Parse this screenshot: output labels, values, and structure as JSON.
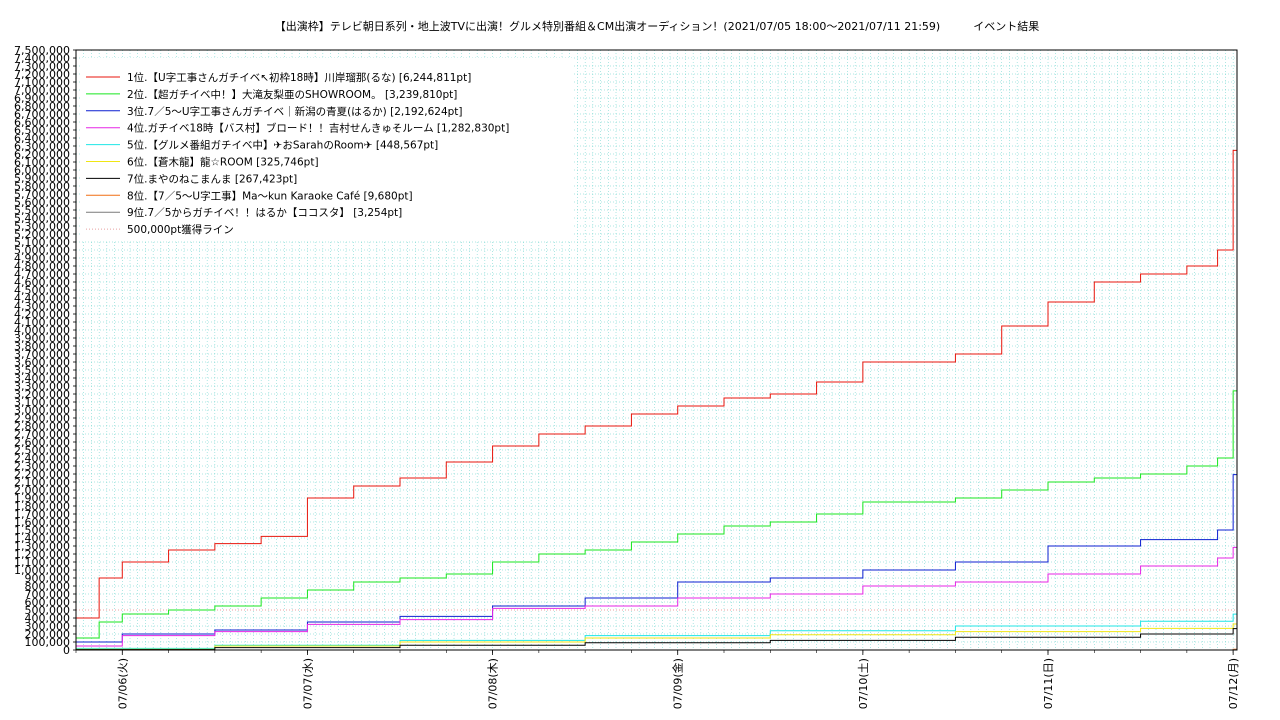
{
  "chart_data": {
    "type": "line",
    "title": "【出演枠】テレビ朝日系列・地上波TVに出演！グルメ特別番組＆CM出演オーディション！(2021/07/05 18:00〜2021/07/11 21:59)　　　イベント結果",
    "xlabel": "",
    "ylabel": "",
    "x_ticks": [
      "07/06(火)",
      "07/07(水)",
      "07/08(木)",
      "07/09(金)",
      "07/10(土)",
      "07/11(日)",
      "07/12(月)"
    ],
    "xlim": [
      "2021-07-05 18:00",
      "2021-07-12 00:30"
    ],
    "ylim": [
      0,
      7500000
    ],
    "y_tick_step": 100000,
    "grid": true,
    "legend_position": "top-left",
    "colors": {
      "s1": "#e8160c",
      "s2": "#17e61f",
      "s3": "#0b1fd0",
      "s4": "#e626e6",
      "s5": "#1fe6e6",
      "s6": "#f0e614",
      "s7": "#000000",
      "s8": "#f06e14",
      "s9": "#7a7a7a",
      "ref": "#e8a0a0",
      "grid": "#5fd0c8"
    },
    "series": [
      {
        "name": "1位.【U字工事さんガチイベ↖初枠18時】川岸瑠那(るな) [6,244,811pt]",
        "x": [
          "2021-07-05 18:00",
          "2021-07-05 21:00",
          "2021-07-06 00:00",
          "2021-07-06 06:00",
          "2021-07-06 12:00",
          "2021-07-06 18:00",
          "2021-07-07 00:00",
          "2021-07-07 06:00",
          "2021-07-07 12:00",
          "2021-07-07 18:00",
          "2021-07-08 00:00",
          "2021-07-08 06:00",
          "2021-07-08 12:00",
          "2021-07-08 18:00",
          "2021-07-09 00:00",
          "2021-07-09 06:00",
          "2021-07-09 12:00",
          "2021-07-09 18:00",
          "2021-07-10 00:00",
          "2021-07-10 06:00",
          "2021-07-10 12:00",
          "2021-07-10 18:00",
          "2021-07-11 00:00",
          "2021-07-11 06:00",
          "2021-07-11 12:00",
          "2021-07-11 18:00",
          "2021-07-11 21:59",
          "2021-07-12 00:00"
        ],
        "y": [
          400000,
          900000,
          1100000,
          1250000,
          1330000,
          1420000,
          1900000,
          2050000,
          2150000,
          2350000,
          2550000,
          2700000,
          2800000,
          2950000,
          3050000,
          3150000,
          3200000,
          3350000,
          3600000,
          3600000,
          3700000,
          4050000,
          4350000,
          4600000,
          4700000,
          4800000,
          5000000,
          6244811
        ]
      },
      {
        "name": "2位.【超ガチイベ中！】大滝友梨亜のSHOWROOM。 [3,239,810pt]",
        "x": [
          "2021-07-05 18:00",
          "2021-07-05 21:00",
          "2021-07-06 00:00",
          "2021-07-06 06:00",
          "2021-07-06 12:00",
          "2021-07-06 18:00",
          "2021-07-07 00:00",
          "2021-07-07 06:00",
          "2021-07-07 12:00",
          "2021-07-07 18:00",
          "2021-07-08 00:00",
          "2021-07-08 06:00",
          "2021-07-08 12:00",
          "2021-07-08 18:00",
          "2021-07-09 00:00",
          "2021-07-09 06:00",
          "2021-07-09 12:00",
          "2021-07-09 18:00",
          "2021-07-10 00:00",
          "2021-07-10 06:00",
          "2021-07-10 12:00",
          "2021-07-10 18:00",
          "2021-07-11 00:00",
          "2021-07-11 06:00",
          "2021-07-11 12:00",
          "2021-07-11 18:00",
          "2021-07-11 21:59",
          "2021-07-12 00:00"
        ],
        "y": [
          150000,
          350000,
          450000,
          500000,
          550000,
          650000,
          750000,
          850000,
          900000,
          950000,
          1100000,
          1200000,
          1250000,
          1350000,
          1450000,
          1550000,
          1600000,
          1700000,
          1850000,
          1850000,
          1900000,
          2000000,
          2100000,
          2150000,
          2200000,
          2300000,
          2400000,
          3239810
        ]
      },
      {
        "name": "3位.7／5〜U字工事さんガチイベ｜新潟の青夏(はるか) [2,192,624pt]",
        "x": [
          "2021-07-05 18:00",
          "2021-07-06 00:00",
          "2021-07-06 12:00",
          "2021-07-07 00:00",
          "2021-07-07 12:00",
          "2021-07-08 00:00",
          "2021-07-08 12:00",
          "2021-07-09 00:00",
          "2021-07-09 12:00",
          "2021-07-10 00:00",
          "2021-07-10 12:00",
          "2021-07-11 00:00",
          "2021-07-11 12:00",
          "2021-07-11 21:59",
          "2021-07-12 00:00"
        ],
        "y": [
          100000,
          200000,
          250000,
          350000,
          420000,
          550000,
          650000,
          850000,
          900000,
          1000000,
          1100000,
          1300000,
          1380000,
          1500000,
          2192624
        ]
      },
      {
        "name": "4位.ガチイベ18時【バス村】ブロード！！吉村せんきゅそルーム [1,282,830pt]",
        "x": [
          "2021-07-05 18:00",
          "2021-07-06 00:00",
          "2021-07-06 12:00",
          "2021-07-07 00:00",
          "2021-07-07 12:00",
          "2021-07-08 00:00",
          "2021-07-08 12:00",
          "2021-07-09 00:00",
          "2021-07-09 12:00",
          "2021-07-10 00:00",
          "2021-07-10 12:00",
          "2021-07-11 00:00",
          "2021-07-11 12:00",
          "2021-07-11 21:59",
          "2021-07-12 00:00"
        ],
        "y": [
          50000,
          180000,
          230000,
          320000,
          380000,
          520000,
          550000,
          650000,
          700000,
          800000,
          850000,
          950000,
          1050000,
          1150000,
          1282830
        ]
      },
      {
        "name": "5位.【グルメ番組ガチイベ中】✈おSarahのRoom✈ [448,567pt]",
        "x": [
          "2021-07-05 18:00",
          "2021-07-06 12:00",
          "2021-07-07 12:00",
          "2021-07-08 12:00",
          "2021-07-09 12:00",
          "2021-07-10 12:00",
          "2021-07-11 12:00",
          "2021-07-12 00:00"
        ],
        "y": [
          20000,
          60000,
          120000,
          180000,
          240000,
          300000,
          360000,
          448567
        ]
      },
      {
        "name": "6位.【蒼木龍】龍☆ROOM [325,746pt]",
        "x": [
          "2021-07-05 18:00",
          "2021-07-06 12:00",
          "2021-07-07 12:00",
          "2021-07-08 12:00",
          "2021-07-09 12:00",
          "2021-07-10 12:00",
          "2021-07-11 12:00",
          "2021-07-12 00:00"
        ],
        "y": [
          10000,
          50000,
          100000,
          150000,
          190000,
          230000,
          270000,
          325746
        ]
      },
      {
        "name": "7位.まやのねこまんま [267,423pt]",
        "x": [
          "2021-07-05 18:00",
          "2021-07-06 12:00",
          "2021-07-07 12:00",
          "2021-07-08 12:00",
          "2021-07-09 12:00",
          "2021-07-10 12:00",
          "2021-07-11 12:00",
          "2021-07-12 00:00"
        ],
        "y": [
          5000,
          30000,
          60000,
          90000,
          120000,
          160000,
          200000,
          267423
        ]
      },
      {
        "name": "8位.【7／5〜U字工事】Ma〜kun Karaoke Café [9,680pt]",
        "x": [
          "2021-07-05 18:00",
          "2021-07-12 00:00"
        ],
        "y": [
          0,
          9680
        ]
      },
      {
        "name": "9位.7／5からガチイベ！！はるか【ココスタ】 [3,254pt]",
        "x": [
          "2021-07-05 18:00",
          "2021-07-12 00:00"
        ],
        "y": [
          0,
          3254
        ]
      }
    ],
    "reference_line": {
      "name": "500,000pt獲得ライン",
      "value": 500000
    }
  }
}
